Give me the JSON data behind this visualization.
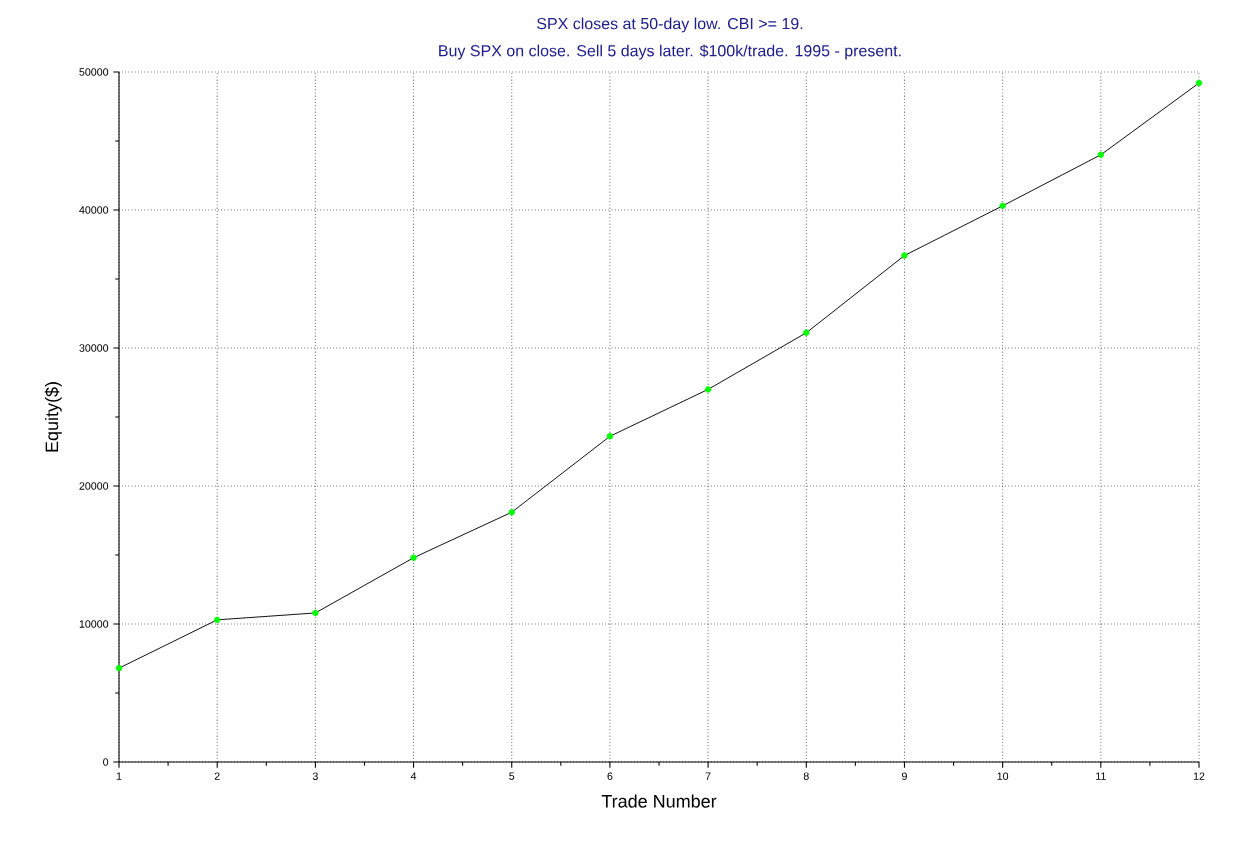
{
  "chart_data": {
    "type": "line",
    "title": "SPX closes at 50-day low. CBI >= 19.",
    "subtitle": "Buy SPX on close. Sell 5 days later. $100k/trade. 1995 - present.",
    "xlabel": "Trade Number",
    "ylabel": "Equity($)",
    "x": [
      1,
      2,
      3,
      4,
      5,
      6,
      7,
      8,
      9,
      10,
      11,
      12
    ],
    "series": [
      {
        "color": "#000000",
        "colors": [
          "#00ff00",
          "#00ff00",
          "#00ff00",
          "#00ff00",
          "#00ff00",
          "#00ff00",
          "#00ff00",
          "#00ff00",
          "#00ff00",
          "#00ff00",
          "#00ff00",
          "#00ff00"
        ],
        "values": [
          6800,
          10300,
          10800,
          14800,
          18100,
          23600,
          27000,
          31100,
          36700,
          40300,
          44000,
          49200
        ]
      }
    ],
    "xlim": [
      1,
      12
    ],
    "ylim": [
      0,
      50000
    ],
    "xticks": [
      1,
      2,
      3,
      4,
      5,
      6,
      7,
      8,
      9,
      10,
      11,
      12
    ],
    "yticks": [
      0,
      10000,
      20000,
      30000,
      40000,
      50000
    ],
    "grid": true,
    "marker": "circle",
    "line_style": "solid"
  }
}
